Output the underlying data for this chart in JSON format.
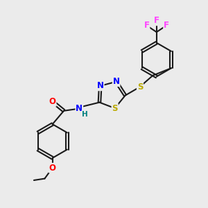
{
  "background_color": "#ebebeb",
  "bond_color": "#1a1a1a",
  "bond_width": 1.5,
  "atom_colors": {
    "N": "#0000ff",
    "S": "#bbaa00",
    "O": "#ff0000",
    "F": "#ff44ff",
    "H": "#008080",
    "C": "#1a1a1a"
  },
  "font_size_atom": 8.5,
  "font_size_small": 7.5
}
